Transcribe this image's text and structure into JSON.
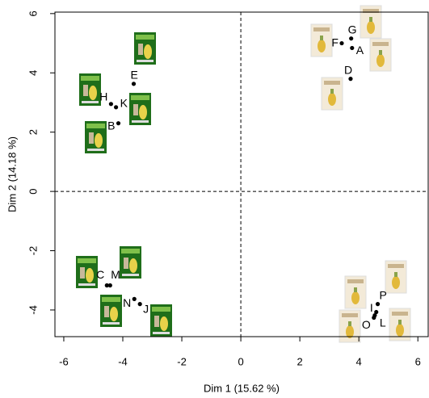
{
  "chart_data": {
    "type": "scatter",
    "x_label": "Dim 1 (15.62 %)",
    "y_label": "Dim 2 (14.18 %)",
    "labels": [
      "A",
      "F",
      "G",
      "D",
      "E",
      "H",
      "K",
      "B",
      "C",
      "M",
      "N",
      "J",
      "P",
      "I",
      "O",
      "L"
    ],
    "x": [
      3.77,
      3.42,
      3.74,
      3.72,
      -3.63,
      -4.4,
      -4.23,
      -4.15,
      -4.54,
      -4.43,
      -3.61,
      -3.42,
      4.64,
      4.59,
      4.51,
      4.54
    ],
    "values": [
      4.84,
      5.0,
      5.16,
      3.8,
      3.63,
      2.95,
      2.84,
      2.3,
      -3.17,
      -3.17,
      -3.63,
      -3.8,
      -3.8,
      -4.07,
      -4.26,
      -4.18
    ],
    "color": "#000000",
    "xlim": [
      -6.3,
      6.35
    ],
    "ylim": [
      -4.9,
      6.05
    ],
    "xticks": [
      -6,
      -4,
      -2,
      0,
      2,
      4,
      6
    ],
    "yticks": [
      -4,
      -2,
      0,
      2,
      4,
      6
    ],
    "zero_lines": true
  }
}
